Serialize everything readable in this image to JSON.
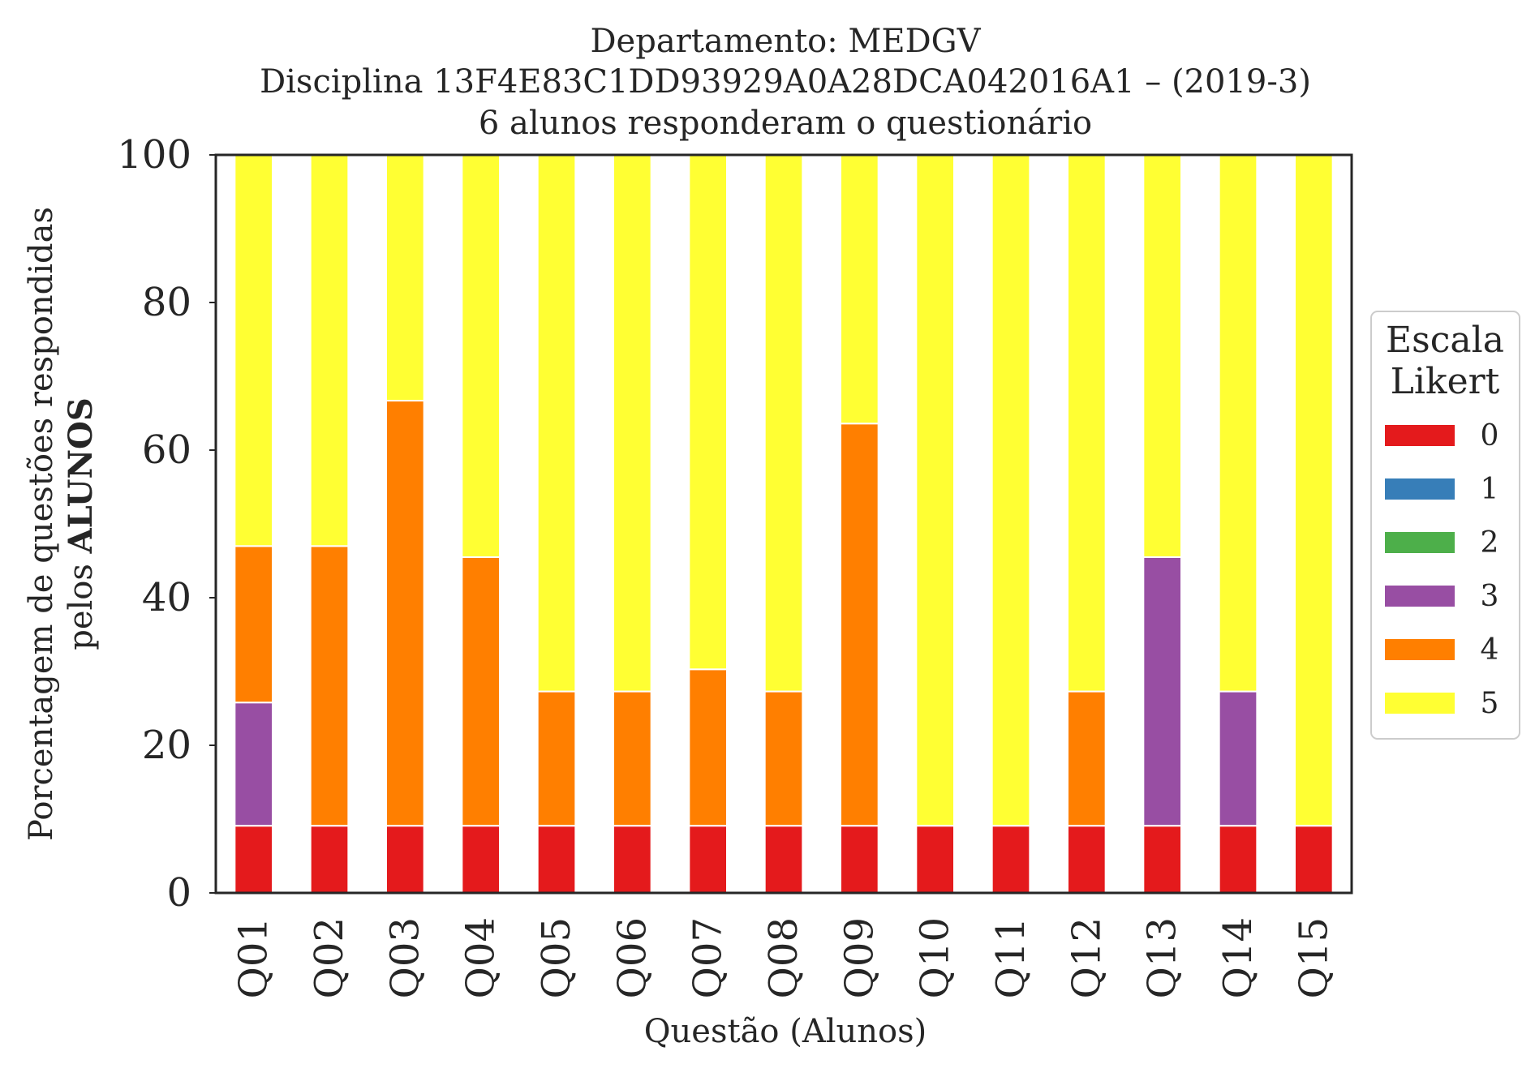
{
  "chart_data": {
    "type": "bar",
    "stacked": true,
    "title_lines": [
      "Departamento: MEDGV",
      "Disciplina 13F4E83C1DD93929A0A28DCA042016A1 – (2019-3)",
      "6 alunos responderam o questionário"
    ],
    "xlabel": "Questão (Alunos)",
    "ylabel_line1": "Porcentagem de questões respondidas",
    "ylabel_line2_prefix": "pelos ",
    "ylabel_line2_bold": "ALUNOS",
    "ylim": [
      0,
      100
    ],
    "yticks": [
      "0",
      "20",
      "40",
      "60",
      "80",
      "100"
    ],
    "grid": false,
    "legend_title_lines": [
      "Escala",
      "Likert"
    ],
    "legend_position": "center-right, outside plot",
    "categories": [
      "Q01",
      "Q02",
      "Q03",
      "Q04",
      "Q05",
      "Q06",
      "Q07",
      "Q08",
      "Q09",
      "Q10",
      "Q11",
      "Q12",
      "Q13",
      "Q14",
      "Q15"
    ],
    "series": [
      {
        "name": "0",
        "color": "#e41a1c",
        "values": [
          9.1,
          9.1,
          9.1,
          9.1,
          9.1,
          9.1,
          9.1,
          9.1,
          9.1,
          9.1,
          9.1,
          9.1,
          9.1,
          9.1,
          9.1
        ]
      },
      {
        "name": "1",
        "color": "#377eb8",
        "values": [
          0,
          0,
          0,
          0,
          0,
          0,
          0,
          0,
          0,
          0,
          0,
          0,
          0,
          0,
          0
        ]
      },
      {
        "name": "2",
        "color": "#4daf4a",
        "values": [
          0,
          0,
          0,
          0,
          0,
          0,
          0,
          0,
          0,
          0,
          0,
          0,
          0,
          0,
          0
        ]
      },
      {
        "name": "3",
        "color": "#984ea3",
        "values": [
          16.7,
          0,
          0,
          0,
          0,
          0,
          0,
          0,
          0,
          0,
          0,
          0,
          36.4,
          18.2,
          0
        ]
      },
      {
        "name": "4",
        "color": "#ff7f00",
        "values": [
          21.2,
          37.9,
          57.6,
          36.4,
          18.2,
          18.2,
          21.2,
          18.2,
          54.5,
          0,
          0,
          18.2,
          0,
          0,
          0
        ]
      },
      {
        "name": "5",
        "color": "#ffff33",
        "values": [
          53.0,
          53.0,
          33.3,
          54.5,
          72.7,
          72.7,
          69.7,
          72.7,
          36.4,
          90.9,
          90.9,
          72.7,
          54.5,
          72.7,
          90.9
        ]
      }
    ]
  }
}
